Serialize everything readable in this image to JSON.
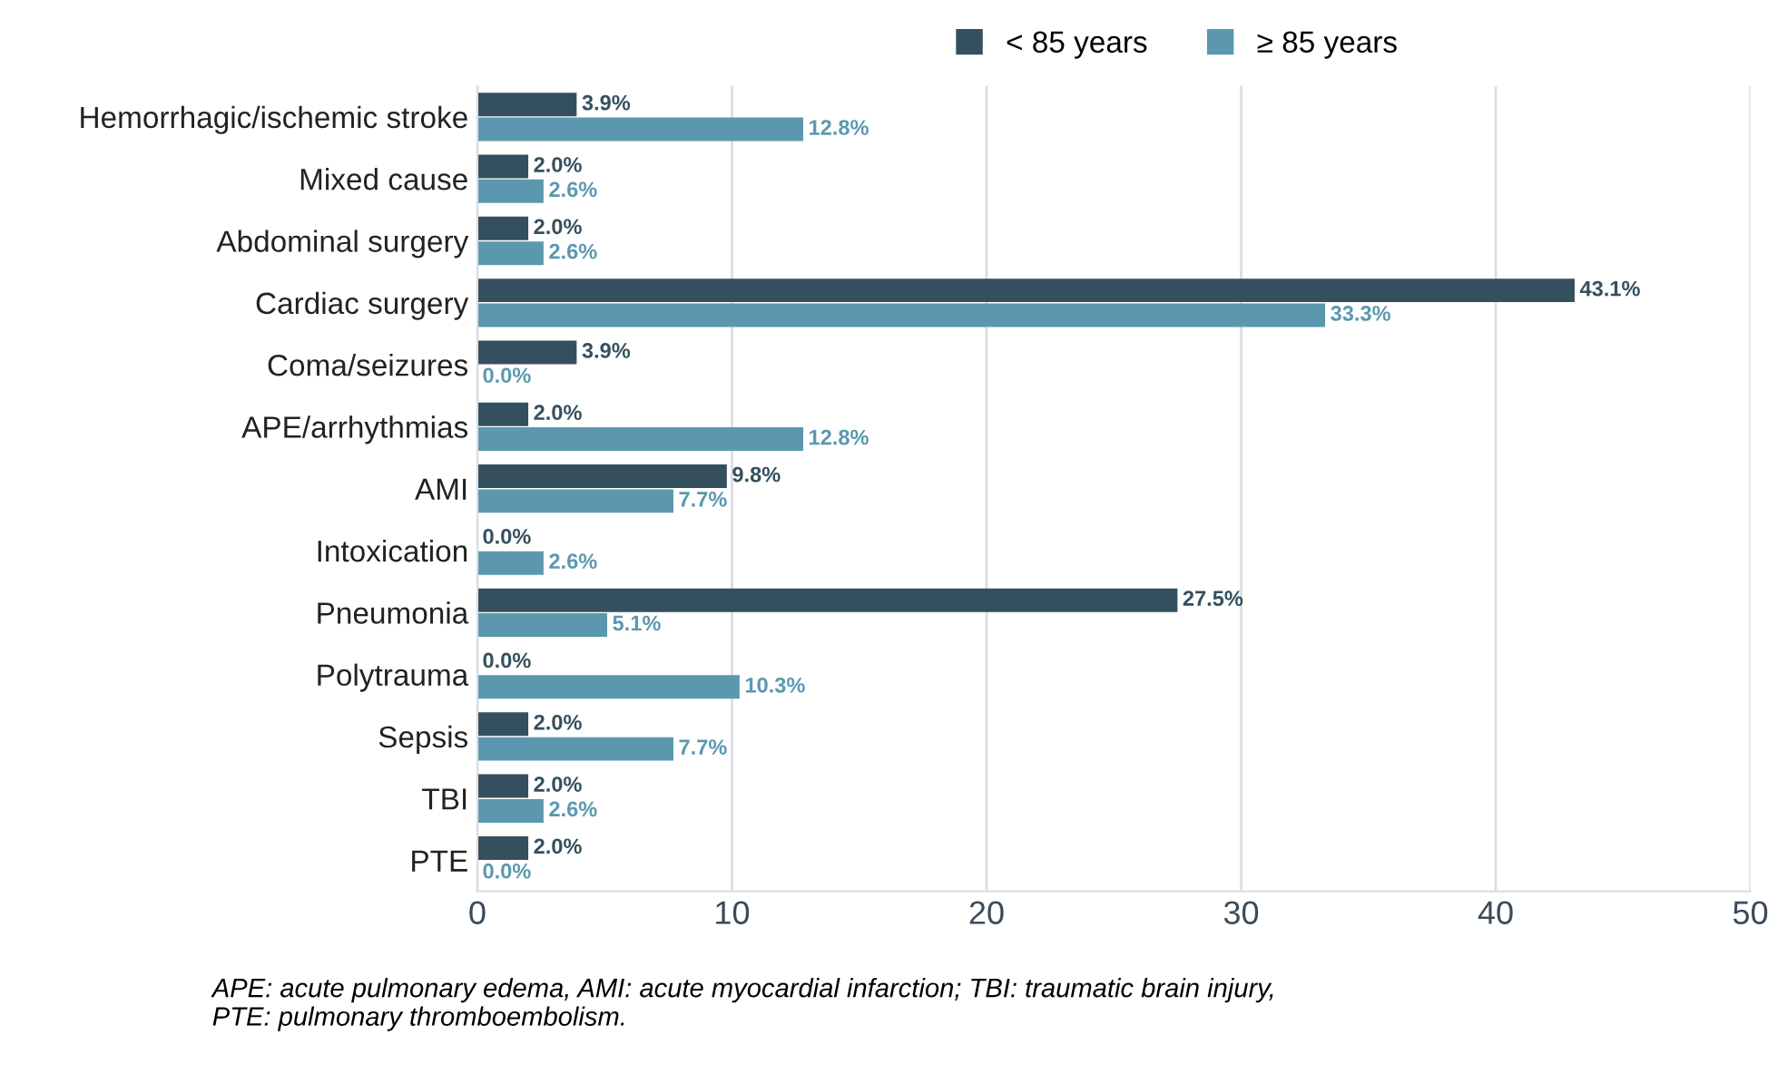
{
  "chart_data": {
    "type": "bar",
    "orientation": "horizontal",
    "categories": [
      "Hemorrhagic/ischemic stroke",
      "Mixed cause",
      "Abdominal surgery",
      "Cardiac surgery",
      "Coma/seizures",
      "APE/arrhythmias",
      "AMI",
      "Intoxication",
      "Pneumonia",
      "Polytrauma",
      "Sepsis",
      "TBI",
      "PTE"
    ],
    "series": [
      {
        "name": "< 85 years",
        "color": "#34505f",
        "values": [
          3.9,
          2.0,
          2.0,
          43.1,
          3.9,
          2.0,
          9.8,
          0.0,
          27.5,
          0.0,
          2.0,
          2.0,
          2.0
        ],
        "value_labels": [
          "3.9%",
          "2.0%",
          "2.0%",
          "43.1%",
          "3.9%",
          "2.0%",
          "9.8%",
          "0.0%",
          "27.5%",
          "0.0%",
          "2.0%",
          "2.0%",
          "2.0%"
        ]
      },
      {
        "name": "≥ 85 years",
        "color": "#5b98b0",
        "values": [
          12.8,
          2.6,
          2.6,
          33.3,
          0.0,
          12.8,
          7.7,
          2.6,
          5.1,
          10.3,
          7.7,
          2.6,
          0.0
        ],
        "value_labels": [
          "12.8%",
          "2.6%",
          "2.6%",
          "33.3%",
          "0.0%",
          "12.8%",
          "7.7%",
          "2.6%",
          "5.1%",
          "10.3%",
          "7.7%",
          "2.6%",
          "0.0%"
        ]
      }
    ],
    "xlim": [
      0,
      50
    ],
    "xticks": [
      0,
      10,
      20,
      30,
      40,
      50
    ],
    "grid": "x",
    "legend": "top",
    "annotations": [
      "APE: acute pulmonary edema, AMI: acute myocardial infarction; TBI: traumatic brain injury,\nPTE: pulmonary thromboembolism."
    ]
  }
}
